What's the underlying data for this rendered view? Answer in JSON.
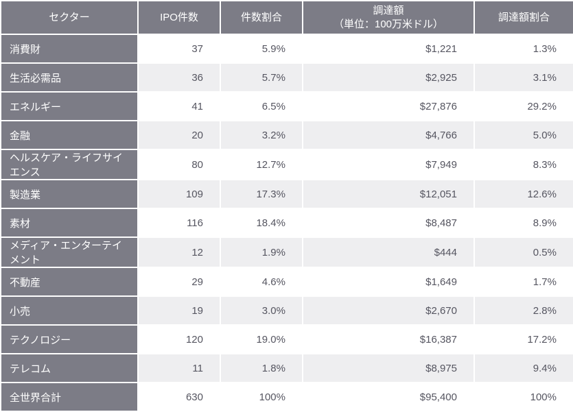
{
  "colors": {
    "header_bg": "#7c7c86",
    "header_fg": "#ffffff",
    "sector_bg": "#7c7c86",
    "sector_fg": "#ffffff",
    "odd_bg": "#ffffff",
    "even_bg": "#eeeef0",
    "cell_fg": "#555560",
    "border": "#ffffff"
  },
  "columns": [
    {
      "label": "セクター"
    },
    {
      "label": "IPO件数"
    },
    {
      "label": "件数割合"
    },
    {
      "label": "調達額\n（単位：100万米ドル）"
    },
    {
      "label": "調達額割合"
    }
  ],
  "rows": [
    {
      "sector": "消費財",
      "count": "37",
      "count_pct": "5.9%",
      "amount": "$1,221",
      "amount_pct": "1.3%"
    },
    {
      "sector": "生活必需品",
      "count": "36",
      "count_pct": "5.7%",
      "amount": "$2,925",
      "amount_pct": "3.1%"
    },
    {
      "sector": "エネルギー",
      "count": "41",
      "count_pct": "6.5%",
      "amount": "$27,876",
      "amount_pct": "29.2%"
    },
    {
      "sector": "金融",
      "count": "20",
      "count_pct": "3.2%",
      "amount": "$4,766",
      "amount_pct": "5.0%"
    },
    {
      "sector": "ヘルスケア・ライフサイエンス",
      "count": "80",
      "count_pct": "12.7%",
      "amount": "$7,949",
      "amount_pct": "8.3%"
    },
    {
      "sector": "製造業",
      "count": "109",
      "count_pct": "17.3%",
      "amount": "$12,051",
      "amount_pct": "12.6%"
    },
    {
      "sector": "素材",
      "count": "116",
      "count_pct": "18.4%",
      "amount": "$8,487",
      "amount_pct": "8.9%"
    },
    {
      "sector": "メディア・エンターテイメント",
      "count": "12",
      "count_pct": "1.9%",
      "amount": "$444",
      "amount_pct": "0.5%"
    },
    {
      "sector": "不動産",
      "count": "29",
      "count_pct": "4.6%",
      "amount": "$1,649",
      "amount_pct": "1.7%"
    },
    {
      "sector": "小売",
      "count": "19",
      "count_pct": "3.0%",
      "amount": "$2,670",
      "amount_pct": "2.8%"
    },
    {
      "sector": "テクノロジー",
      "count": "120",
      "count_pct": "19.0%",
      "amount": "$16,387",
      "amount_pct": "17.2%"
    },
    {
      "sector": "テレコム",
      "count": "11",
      "count_pct": "1.8%",
      "amount": "$8,975",
      "amount_pct": "9.4%"
    },
    {
      "sector": "全世界合計",
      "count": "630",
      "count_pct": "100%",
      "amount": "$95,400",
      "amount_pct": "100%"
    }
  ]
}
